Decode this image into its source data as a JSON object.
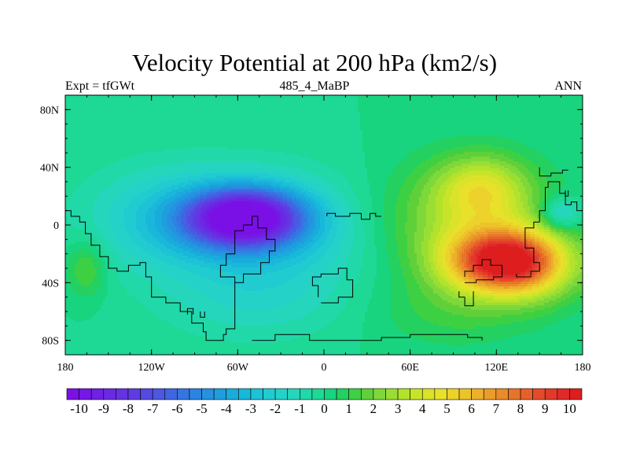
{
  "chart_data": {
    "type": "heatmap",
    "title": "Velocity Potential at 200 hPa (km2/s)",
    "subtitle_left": "Expt = tfGWt",
    "subtitle_center": "485_4_MaBP",
    "subtitle_right": "ANN",
    "x_range": [
      -180,
      180
    ],
    "y_range": [
      -90,
      90
    ],
    "x_ticks": [
      {
        "value": -180,
        "label": "180"
      },
      {
        "value": -120,
        "label": "120W"
      },
      {
        "value": -60,
        "label": "60W"
      },
      {
        "value": 0,
        "label": "0"
      },
      {
        "value": 60,
        "label": "60E"
      },
      {
        "value": 120,
        "label": "120E"
      },
      {
        "value": 180,
        "label": "180"
      }
    ],
    "y_ticks": [
      {
        "value": 80,
        "label": "80N"
      },
      {
        "value": 40,
        "label": "40N"
      },
      {
        "value": 0,
        "label": "0"
      },
      {
        "value": -40,
        "label": "40S"
      },
      {
        "value": -80,
        "label": "80S"
      }
    ],
    "colorbar": {
      "min": -10.5,
      "max": 10.5,
      "step": 0.5,
      "labels": [
        "-10",
        "-9",
        "-8",
        "-7",
        "-6",
        "-5",
        "-4",
        "-3",
        "-2",
        "-1",
        "0",
        "1",
        "2",
        "3",
        "4",
        "5",
        "6",
        "7",
        "8",
        "9",
        "10"
      ],
      "colors": [
        "#7a10e6",
        "#7418e6",
        "#6f21e4",
        "#6a2ae4",
        "#6533e2",
        "#5e3ce4",
        "#5549e4",
        "#4c58e2",
        "#3f66e2",
        "#3575e2",
        "#2b84e2",
        "#2592e0",
        "#1f9ede",
        "#19abdc",
        "#19b7da",
        "#1dc2d6",
        "#21ccd0",
        "#24d2c8",
        "#25d6bc",
        "#21d8a8",
        "#1ed896",
        "#18d47e",
        "#24d060",
        "#3ed043",
        "#60d03a",
        "#7ed83a",
        "#9ade34",
        "#b2e22c",
        "#c8e42a",
        "#dae32a",
        "#e8e02a",
        "#ecd22a",
        "#ecc42a",
        "#ecb02a",
        "#ec9c2a",
        "#ea8a2a",
        "#e8742a",
        "#e6602a",
        "#e44b2a",
        "#e23a2a",
        "#e02a2a",
        "#de1e1e"
      ]
    },
    "field_peaks": [
      {
        "lon": -55,
        "lat": 5,
        "value": -10.2,
        "sx": 28,
        "sy": 14
      },
      {
        "lon": -35,
        "lat": -6,
        "value": -2.5,
        "sx": 55,
        "sy": 30
      },
      {
        "lon": -110,
        "lat": 5,
        "value": -2.0,
        "sx": 40,
        "sy": 25
      },
      {
        "lon": -50,
        "lat": -55,
        "value": -1.0,
        "sx": 45,
        "sy": 20
      },
      {
        "lon": 124,
        "lat": -25,
        "value": 9.5,
        "sx": 26,
        "sy": 15
      },
      {
        "lon": 110,
        "lat": 25,
        "value": 3.2,
        "sx": 22,
        "sy": 16
      },
      {
        "lon": 95,
        "lat": 0,
        "value": 2.8,
        "sx": 45,
        "sy": 30
      },
      {
        "lon": 150,
        "lat": -30,
        "value": 2.0,
        "sx": 22,
        "sy": 18
      },
      {
        "lon": 165,
        "lat": 8,
        "value": -2.6,
        "sx": 10,
        "sy": 8
      },
      {
        "lon": 195,
        "lat": -30,
        "value": 1.8,
        "sx": 10,
        "sy": 14
      },
      {
        "lon": -165,
        "lat": -30,
        "value": 1.8,
        "sx": 10,
        "sy": 14
      },
      {
        "lon": 90,
        "lat": -60,
        "value": 1.0,
        "sx": 40,
        "sy": 18
      }
    ]
  }
}
